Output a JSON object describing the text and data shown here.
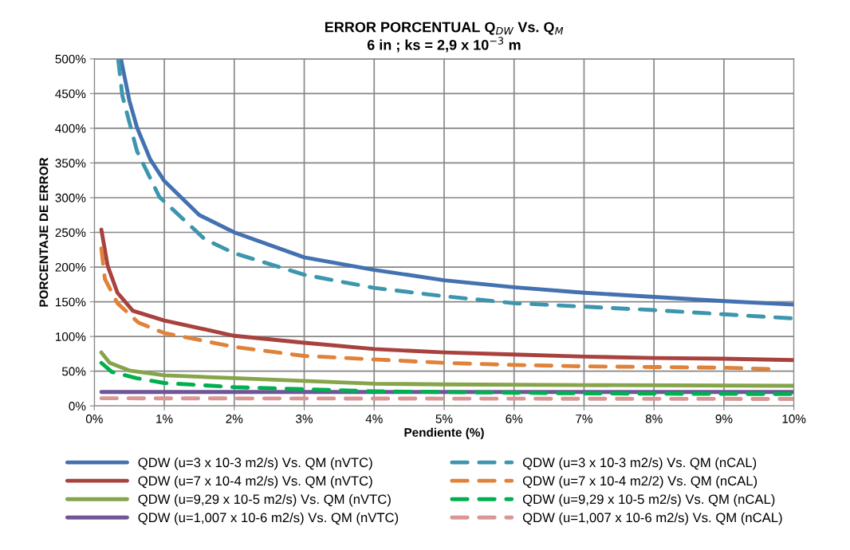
{
  "chart_data": {
    "type": "line",
    "title": "ERROR PORCENTUAL Q$_{DW}$ Vs. Q$_{M}$\n6 in ; ks = 2,9 x 10$^{−3}$ m",
    "xlabel": "Pendiente (%)",
    "ylabel": "PORCENTAJE DE ERROR",
    "xlim": [
      0,
      10
    ],
    "ylim": [
      0,
      500
    ],
    "xticks": [
      {
        "value": 0,
        "label": "0%"
      },
      {
        "value": 1,
        "label": "1%"
      },
      {
        "value": 2,
        "label": "2%"
      },
      {
        "value": 3,
        "label": "3%"
      },
      {
        "value": 4,
        "label": "4%"
      },
      {
        "value": 5,
        "label": "5%"
      },
      {
        "value": 6,
        "label": "6%"
      },
      {
        "value": 7,
        "label": "7%"
      },
      {
        "value": 8,
        "label": "8%"
      },
      {
        "value": 9,
        "label": "9%"
      },
      {
        "value": 10,
        "label": "10%"
      }
    ],
    "yticks": [
      {
        "value": 0,
        "label": "0%"
      },
      {
        "value": 50,
        "label": "50%"
      },
      {
        "value": 100,
        "label": "100%"
      },
      {
        "value": 150,
        "label": "150%"
      },
      {
        "value": 200,
        "label": "200%"
      },
      {
        "value": 250,
        "label": "250%"
      },
      {
        "value": 300,
        "label": "300%"
      },
      {
        "value": 350,
        "label": "350%"
      },
      {
        "value": 400,
        "label": "400%"
      },
      {
        "value": 450,
        "label": "450%"
      },
      {
        "value": 500,
        "label": "500%"
      }
    ],
    "grid": true,
    "legend": "bottom",
    "series": [
      {
        "name": "QDW (u=3 x 10-3 m2/s) Vs. QM (nVTC)",
        "color": "#4471b0",
        "line_style": "solid",
        "x": [
          0.38,
          0.5,
          0.61,
          0.8,
          1,
          1.5,
          2,
          3,
          4,
          5,
          6,
          7,
          8,
          9,
          10
        ],
        "values": [
          500,
          440,
          401,
          355,
          324,
          275,
          250,
          214,
          196,
          181,
          171,
          163,
          157,
          151,
          146
        ]
      },
      {
        "name": "QDW (u=7 x 10-4 m2/s) Vs. QM (nVTC)",
        "color": "#a8423f",
        "line_style": "solid",
        "x": [
          0.1,
          0.19,
          0.33,
          0.55,
          1,
          2,
          3,
          4,
          5,
          6,
          7,
          8,
          9,
          10
        ],
        "values": [
          254,
          202,
          163,
          137,
          123,
          101,
          91,
          82,
          77,
          74,
          71,
          69,
          68,
          66
        ]
      },
      {
        "name": "QDW (u=9,29 x 10-5 m2/s) Vs. QM (nVTC)",
        "color": "#86a44a",
        "line_style": "solid",
        "x": [
          0.1,
          0.22,
          0.5,
          1,
          2,
          3,
          4,
          5,
          7,
          10
        ],
        "values": [
          77,
          62,
          51,
          44,
          40,
          36,
          32,
          31,
          30,
          29
        ]
      },
      {
        "name": "QDW (u=1,007 x 10-6 m2/s) Vs. QM (nVTC)",
        "color": "#6e5597",
        "line_style": "solid",
        "x": [
          0.1,
          10
        ],
        "values": [
          20,
          20
        ]
      },
      {
        "name": "QDW (u=3 x 10-3 m2/s) Vs. QM (nCAL)",
        "color": "#3d96ae",
        "line_style": "dashed",
        "x": [
          0.34,
          0.4,
          0.61,
          0.93,
          1.58,
          2,
          3,
          4,
          5,
          6,
          7,
          8,
          9,
          10
        ],
        "values": [
          500,
          447,
          367,
          301,
          240,
          220,
          189,
          170,
          158,
          148,
          143,
          138,
          132,
          126
        ]
      },
      {
        "name": "QDW (u=7 x 10-4 m2/2) Vs. QM (nCAL)",
        "color": "#e0823a",
        "line_style": "dashed",
        "x": [
          0.1,
          0.15,
          0.33,
          0.63,
          1,
          2,
          3,
          4,
          5,
          6,
          7,
          8,
          9,
          9.7
        ],
        "values": [
          227,
          183,
          148,
          120,
          105,
          85,
          72,
          67,
          62,
          59,
          57,
          56,
          55,
          53
        ]
      },
      {
        "name": "QDW (u=9,29 x 10-5 m2/s) Vs. QM (nCAL)",
        "color": "#00b050",
        "line_style": "dashed",
        "x": [
          0.1,
          0.25,
          0.6,
          1,
          2,
          3,
          4,
          5,
          7,
          10
        ],
        "values": [
          62,
          49,
          40,
          33,
          27,
          24,
          21,
          20,
          18,
          17
        ]
      },
      {
        "name": "QDW (u=1,007 x 10-6 m2/s) Vs. QM (nCAL)",
        "color": "#d99694",
        "line_style": "dashed",
        "x": [
          0.1,
          10
        ],
        "values": [
          11,
          10
        ]
      }
    ]
  }
}
